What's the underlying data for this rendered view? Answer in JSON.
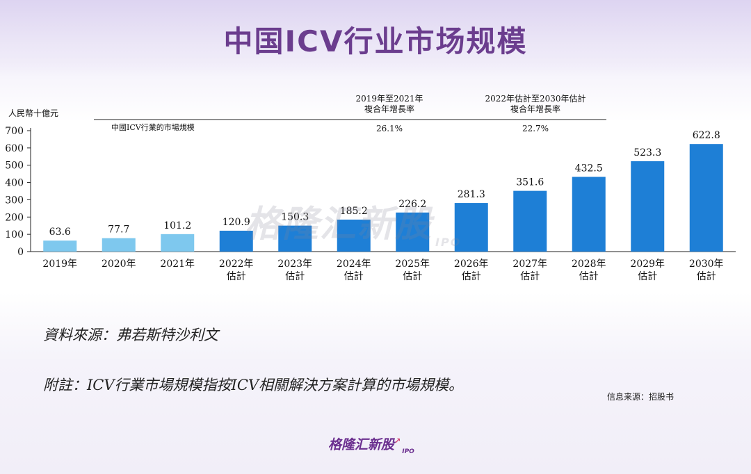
{
  "page": {
    "title": "中国ICV行业市场规模",
    "watermark": "格隆汇新股",
    "watermark_suffix": "IPO"
  },
  "chart_data": {
    "type": "bar",
    "unit_label": "人民幣十億元",
    "series_label": "中國ICV行業的市場規模",
    "categories": [
      [
        "2019年"
      ],
      [
        "2020年"
      ],
      [
        "2021年"
      ],
      [
        "2022年",
        "估計"
      ],
      [
        "2023年",
        "估計"
      ],
      [
        "2024年",
        "估計"
      ],
      [
        "2025年",
        "估計"
      ],
      [
        "2026年",
        "估計"
      ],
      [
        "2027年",
        "估計"
      ],
      [
        "2028年",
        "估計"
      ],
      [
        "2029年",
        "估計"
      ],
      [
        "2030年",
        "估計"
      ]
    ],
    "values": [
      63.6,
      77.7,
      101.2,
      120.9,
      150.3,
      185.2,
      226.2,
      281.3,
      351.6,
      432.5,
      523.3,
      622.8
    ],
    "value_labels": [
      "63.6",
      "77.7",
      "101.2",
      "120.9",
      "150.3",
      "185.2",
      "226.2",
      "281.3",
      "351.6",
      "432.5",
      "523.3",
      "622.8"
    ],
    "ylim": [
      0,
      700
    ],
    "yticks": [
      0,
      100,
      200,
      300,
      400,
      500,
      600,
      700
    ],
    "colors": {
      "historical": "#7ec8ee",
      "forecast": "#1e7fd6"
    },
    "historical_count": 3,
    "cagr_header": [
      {
        "lines": [
          "2019年至2021年",
          "複合年增長率"
        ],
        "value": "26.1%"
      },
      {
        "lines": [
          "2022年估計至2030年估計",
          "複合年增長率"
        ],
        "value": "22.7%"
      }
    ]
  },
  "notes": {
    "source": "資料來源：弗若斯特沙利文",
    "footnote": "附註：ICV行業市場規模指按ICV相關解決方案計算的市場規模。",
    "info_source": "信息来源：招股书"
  },
  "brand": {
    "name": "格隆汇新股",
    "suffix": "IPO"
  }
}
